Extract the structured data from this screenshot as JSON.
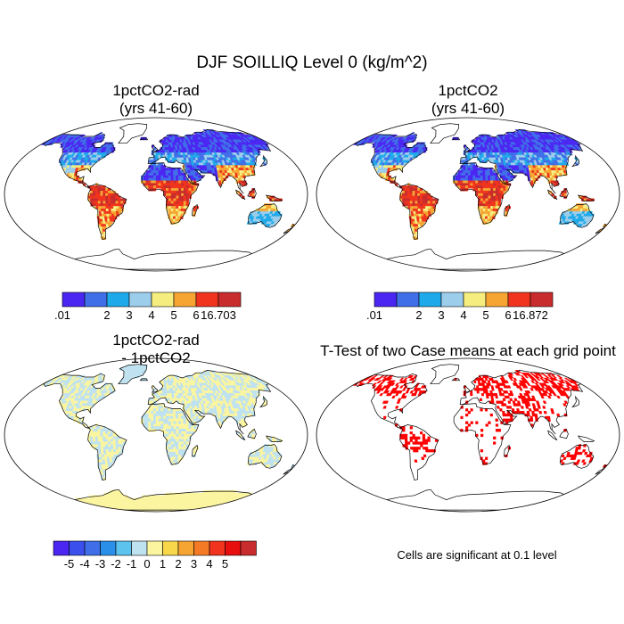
{
  "title": "DJF SOILLIQ Level 0 (kg/m^2)",
  "panels": [
    {
      "title_line1": "1pctCO2-rad",
      "title_line2": "(yrs 41-60)",
      "scheme": "abs"
    },
    {
      "title_line1": "1pctCO2",
      "title_line2": "(yrs 41-60)",
      "scheme": "abs"
    },
    {
      "title_line1": "1pctCO2-rad",
      "title_line2": "- 1pctCO2",
      "scheme": "diff"
    },
    {
      "title_line1": "T-Test of two Case means at each grid point",
      "title_line2": "",
      "scheme": "sig"
    }
  ],
  "legends": [
    {
      "colors": [
        "#4b26f2",
        "#3f6ee8",
        "#1ea9ea",
        "#9ccdeb",
        "#f5ee7f",
        "#f6a532",
        "#f0341d",
        "#c82c2c"
      ],
      "labels": [
        ".01",
        "",
        "2",
        "3",
        "4",
        "5",
        "6",
        "16.703"
      ]
    },
    {
      "colors": [
        "#4b26f2",
        "#3f6ee8",
        "#1ea9ea",
        "#9ccdeb",
        "#f5ee7f",
        "#f6a532",
        "#f0341d",
        "#c82c2c"
      ],
      "labels": [
        ".01",
        "",
        "2",
        "3",
        "4",
        "5",
        "6",
        "16.872"
      ]
    },
    {
      "colors": [
        "#4b26f2",
        "#3a4fec",
        "#3f6ee8",
        "#2a8fe8",
        "#5cc2ee",
        "#bfe2f0",
        "#fbf5a0",
        "#f8d84a",
        "#f6a532",
        "#f47a25",
        "#f0341d",
        "#e80e0e",
        "#c82c2c"
      ],
      "labels": [
        "-5",
        "-4",
        "-3",
        "-2",
        "-1",
        "0",
        "1",
        "2",
        "3",
        "4",
        "5"
      ]
    }
  ],
  "significance_note": "Cells are significant at 0.1 level",
  "colors": {
    "significant": "#ff0000",
    "coast": "#000000",
    "frame": "#000000"
  }
}
